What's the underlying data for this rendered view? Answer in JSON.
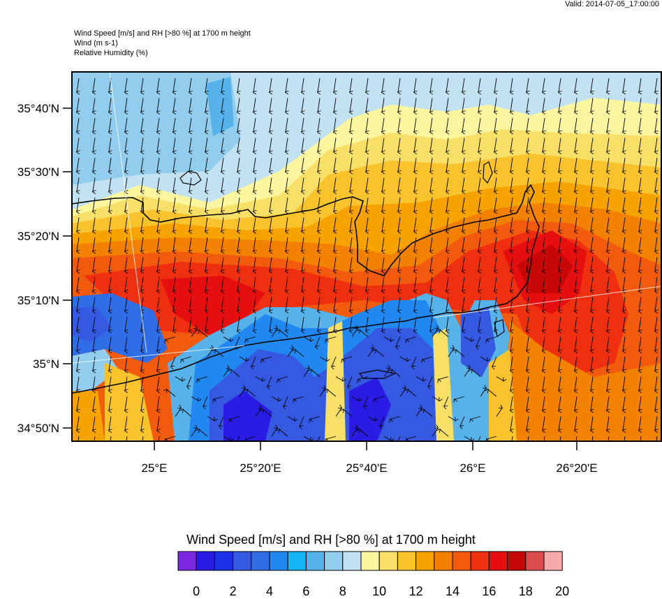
{
  "valid_label": "Valid: 2014-07-05_17:00:00",
  "header": {
    "line1": "Wind Speed [m/s] and RH [>80 %] at 1700 m height",
    "line2": "Wind   (m s-1)",
    "line3": "Relative Humidity   (%)"
  },
  "map": {
    "lat_ticks": [
      "35°40'N",
      "35°30'N",
      "35°20'N",
      "35°10'N",
      "35°N",
      "34°50'N"
    ],
    "lon_ticks": [
      "25°E",
      "25°20'E",
      "25°40'E",
      "26°E",
      "26°20'E"
    ],
    "wind_direction": "north-to-south arrows over sea/north; mixed over south Crete"
  },
  "colorbar": {
    "title": "Wind Speed [m/s] and RH [>80 %] at 1700 m height",
    "labels": [
      "0",
      "2",
      "4",
      "6",
      "8",
      "10",
      "12",
      "14",
      "16",
      "18",
      "20"
    ],
    "colors": [
      "#7b27e3",
      "#2a1ce5",
      "#1a31e8",
      "#3559e0",
      "#2f6ee6",
      "#2088f0",
      "#16b4f5",
      "#57b2ea",
      "#92cdee",
      "#c2e2f2",
      "#fcf6a0",
      "#f8e068",
      "#f8c32d",
      "#f6a300",
      "#f38100",
      "#f25a0d",
      "#ee2f10",
      "#e50f0f",
      "#c80707",
      "#db4c4d",
      "#f7aaaa"
    ]
  }
}
